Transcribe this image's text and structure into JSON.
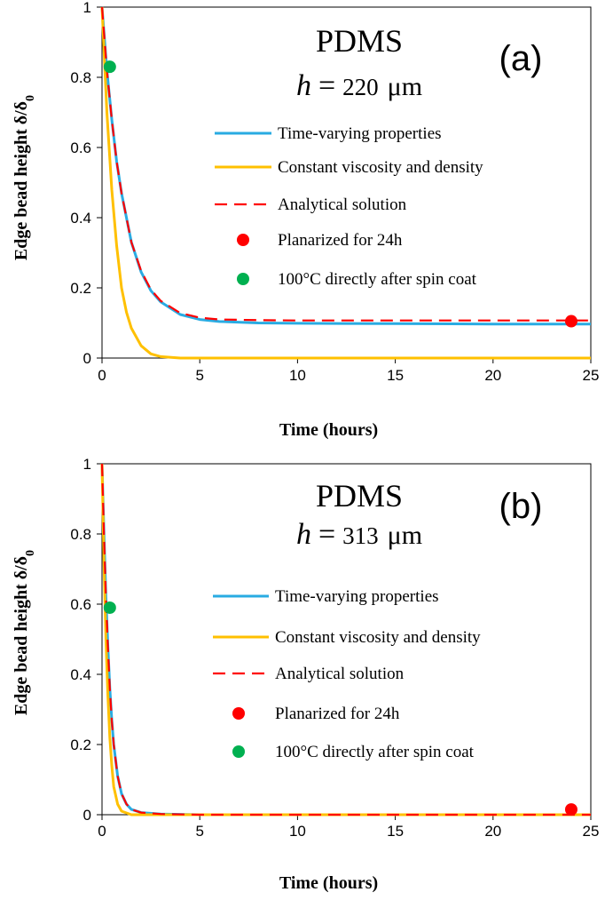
{
  "colors": {
    "time_varying": "#29abe2",
    "constant": "#ffc000",
    "analytical": "#ff0000",
    "planarized": "#ff0000",
    "direct": "#00b050"
  },
  "chart_data": [
    {
      "type": "line",
      "panel_label": "(a)",
      "title": "PDMS",
      "subtitle": {
        "var": "h",
        "eq": "=",
        "value": "220",
        "unit": "μm"
      },
      "xlabel": "Time (hours)",
      "ylabel": "Edge bead height δ/δ0",
      "xlim": [
        0,
        25
      ],
      "ylim": [
        0,
        1
      ],
      "x_ticks": [
        "0",
        "5",
        "10",
        "15",
        "20",
        "25"
      ],
      "y_ticks": [
        "0",
        "0.2",
        "0.4",
        "0.6",
        "0.8",
        "1"
      ],
      "grid": false,
      "legend_position": "center-right",
      "series": [
        {
          "name": "Time-varying properties",
          "style": "solid",
          "color": "#29abe2",
          "x": [
            0,
            0.25,
            0.5,
            0.75,
            1,
            1.5,
            2,
            2.5,
            3,
            4,
            5,
            6,
            8,
            10,
            15,
            20,
            25
          ],
          "y": [
            1.0,
            0.82,
            0.68,
            0.56,
            0.47,
            0.33,
            0.245,
            0.192,
            0.16,
            0.124,
            0.11,
            0.104,
            0.1,
            0.099,
            0.098,
            0.097,
            0.097
          ]
        },
        {
          "name": "Constant viscosity and density",
          "style": "solid",
          "color": "#ffc000",
          "x": [
            0,
            0.25,
            0.5,
            0.75,
            1,
            1.25,
            1.5,
            2,
            2.5,
            3,
            4,
            5,
            10,
            15,
            20,
            25
          ],
          "y": [
            1.0,
            0.7,
            0.48,
            0.32,
            0.2,
            0.13,
            0.085,
            0.035,
            0.012,
            0.004,
            0.0,
            0.0,
            0.0,
            0.0,
            0.0,
            0.0
          ]
        },
        {
          "name": "Analytical solution",
          "style": "dashed",
          "color": "#ff0000",
          "x": [
            0,
            0.25,
            0.5,
            0.75,
            1,
            1.5,
            2,
            2.5,
            3,
            4,
            5,
            6,
            8,
            10,
            15,
            20,
            25
          ],
          "y": [
            1.0,
            0.82,
            0.68,
            0.56,
            0.47,
            0.33,
            0.248,
            0.195,
            0.163,
            0.128,
            0.115,
            0.11,
            0.108,
            0.107,
            0.107,
            0.107,
            0.107
          ]
        },
        {
          "name": "Planarized for 24h",
          "style": "marker",
          "color": "#ff0000",
          "x": [
            24
          ],
          "y": [
            0.105
          ]
        },
        {
          "name": "100°C directly after spin coat",
          "style": "marker",
          "color": "#00b050",
          "x": [
            0.4
          ],
          "y": [
            0.83
          ]
        }
      ]
    },
    {
      "type": "line",
      "panel_label": "(b)",
      "title": "PDMS",
      "subtitle": {
        "var": "h",
        "eq": "=",
        "value": "313",
        "unit": "μm"
      },
      "xlabel": "Time (hours)",
      "ylabel": "Edge bead height δ/δ0",
      "xlim": [
        0,
        25
      ],
      "ylim": [
        0,
        1
      ],
      "x_ticks": [
        "0",
        "5",
        "10",
        "15",
        "20",
        "25"
      ],
      "y_ticks": [
        "0",
        "0.2",
        "0.4",
        "0.6",
        "0.8",
        "1"
      ],
      "grid": false,
      "legend_position": "center-right",
      "series": [
        {
          "name": "Time-varying properties",
          "style": "solid",
          "color": "#29abe2",
          "x": [
            0,
            0.1,
            0.2,
            0.3,
            0.4,
            0.5,
            0.6,
            0.8,
            1,
            1.25,
            1.5,
            2,
            3,
            5,
            10,
            25
          ],
          "y": [
            1.0,
            0.8,
            0.62,
            0.48,
            0.36,
            0.27,
            0.2,
            0.11,
            0.06,
            0.03,
            0.015,
            0.006,
            0.002,
            0.0,
            0.0,
            0.0
          ]
        },
        {
          "name": "Constant viscosity and density",
          "style": "solid",
          "color": "#ffc000",
          "x": [
            0,
            0.1,
            0.2,
            0.3,
            0.4,
            0.5,
            0.6,
            0.8,
            1,
            1.5,
            2,
            25
          ],
          "y": [
            1.0,
            0.72,
            0.5,
            0.34,
            0.22,
            0.14,
            0.08,
            0.03,
            0.01,
            0.0,
            0.0,
            0.0
          ]
        },
        {
          "name": "Analytical solution",
          "style": "dashed",
          "color": "#ff0000",
          "x": [
            0,
            0.1,
            0.2,
            0.3,
            0.4,
            0.5,
            0.6,
            0.8,
            1,
            1.25,
            1.5,
            2,
            3,
            5,
            10,
            25
          ],
          "y": [
            1.0,
            0.8,
            0.62,
            0.48,
            0.36,
            0.27,
            0.2,
            0.11,
            0.06,
            0.03,
            0.015,
            0.006,
            0.002,
            0.0,
            0.0,
            0.0
          ]
        },
        {
          "name": "Planarized for 24h",
          "style": "marker",
          "color": "#ff0000",
          "x": [
            24
          ],
          "y": [
            0.015
          ]
        },
        {
          "name": "100°C directly after spin coat",
          "style": "marker",
          "color": "#00b050",
          "x": [
            0.4
          ],
          "y": [
            0.59
          ]
        }
      ]
    }
  ]
}
